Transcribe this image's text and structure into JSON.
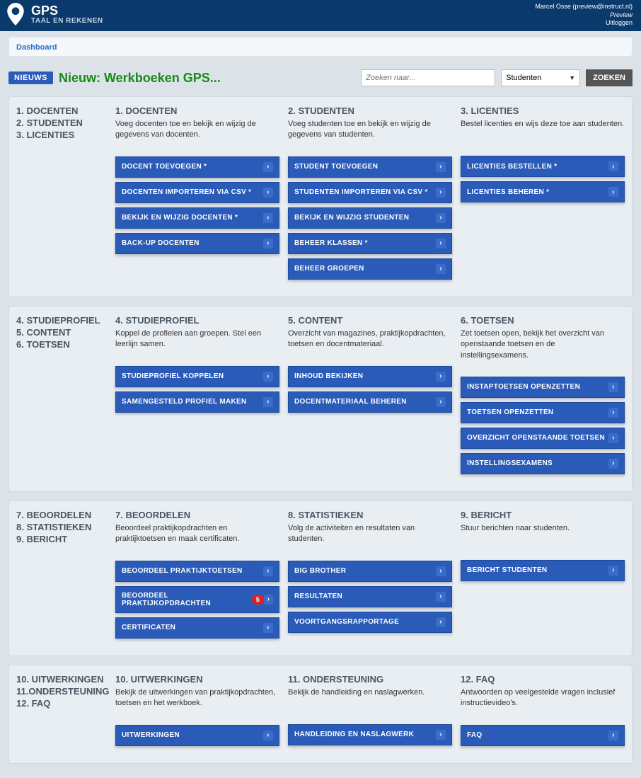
{
  "header": {
    "title": "GPS",
    "subtitle": "TAAL EN REKENEN",
    "user": "Marcel Osse (preview@instruct.nl)",
    "preview": "Preview",
    "logout": "Uitloggen"
  },
  "breadcrumb": {
    "dashboard": "Dashboard"
  },
  "news": {
    "badge": "NIEUWS",
    "text": "Nieuw: Werkboeken GPS..."
  },
  "search": {
    "placeholder": "Zoeken naar...",
    "select": "Studenten",
    "button": "ZOEKEN"
  },
  "sections": [
    {
      "sidebar": [
        "1. DOCENTEN",
        "2. STUDENTEN",
        "3. LICENTIES"
      ],
      "cards": [
        {
          "title": "1. DOCENTEN",
          "desc": "Voeg docenten toe en bekijk en wijzig de gegevens van docenten.",
          "links": [
            {
              "label": "DOCENT TOEVOEGEN *"
            },
            {
              "label": "DOCENTEN IMPORTEREN VIA CSV *"
            },
            {
              "label": "BEKIJK EN WIJZIG DOCENTEN *"
            },
            {
              "label": "BACK-UP DOCENTEN"
            }
          ]
        },
        {
          "title": "2. STUDENTEN",
          "desc": "Voeg studenten toe en bekijk en wijzig de gegevens van studenten.",
          "links": [
            {
              "label": "STUDENT TOEVOEGEN"
            },
            {
              "label": "STUDENTEN IMPORTEREN VIA CSV *"
            },
            {
              "label": "BEKIJK EN WIJZIG STUDENTEN"
            },
            {
              "label": "BEHEER KLASSEN *"
            },
            {
              "label": "BEHEER GROEPEN"
            }
          ]
        },
        {
          "title": "3. LICENTIES",
          "desc": "Bestel licenties en wijs deze toe aan studenten.",
          "links": [
            {
              "label": "LICENTIES BESTELLEN *"
            },
            {
              "label": "LICENTIES BEHEREN *"
            }
          ]
        }
      ]
    },
    {
      "sidebar": [
        "4. STUDIEPROFIEL",
        "5. CONTENT",
        "6. TOETSEN"
      ],
      "cards": [
        {
          "title": "4. STUDIEPROFIEL",
          "desc": "Koppel de profielen aan groepen. Stel een leerlijn samen.",
          "links": [
            {
              "label": "STUDIEPROFIEL KOPPELEN"
            },
            {
              "label": "SAMENGESTELD PROFIEL MAKEN"
            }
          ]
        },
        {
          "title": "5. CONTENT",
          "desc": "Overzicht van magazines, praktijkopdrachten, toetsen en docentmateriaal.",
          "links": [
            {
              "label": "INHOUD BEKIJKEN"
            },
            {
              "label": "DOCENTMATERIAAL BEHEREN"
            }
          ]
        },
        {
          "title": "6. TOETSEN",
          "desc": "Zet toetsen open, bekijk het overzicht van openstaande toetsen en de instellingsexamens.",
          "links": [
            {
              "label": "INSTAPTOETSEN OPENZETTEN"
            },
            {
              "label": "TOETSEN OPENZETTEN"
            },
            {
              "label": "OVERZICHT OPENSTAANDE TOETSEN"
            },
            {
              "label": "INSTELLINGSEXAMENS"
            }
          ]
        }
      ]
    },
    {
      "sidebar": [
        "7. BEOORDELEN",
        "8. STATISTIEKEN",
        "9. BERICHT"
      ],
      "cards": [
        {
          "title": "7. BEOORDELEN",
          "desc": "Beoordeel praktijkopdrachten en praktijktoetsen en maak certificaten.",
          "links": [
            {
              "label": "BEOORDEEL PRAKTIJKTOETSEN"
            },
            {
              "label": "BEOORDEEL PRAKTIJKOPDRACHTEN",
              "badge": "5"
            },
            {
              "label": "CERTIFICATEN"
            }
          ]
        },
        {
          "title": "8. STATISTIEKEN",
          "desc": "Volg de activiteiten en resultaten van studenten.",
          "links": [
            {
              "label": "BIG BROTHER"
            },
            {
              "label": "RESULTATEN"
            },
            {
              "label": "VOORTGANGSRAPPORTAGE"
            }
          ]
        },
        {
          "title": "9. BERICHT",
          "desc": "Stuur berichten naar studenten.",
          "links": [
            {
              "label": "BERICHT STUDENTEN"
            }
          ]
        }
      ]
    },
    {
      "sidebar": [
        "10. UITWERKINGEN",
        "11.ONDERSTEUNING",
        "12. FAQ"
      ],
      "cards": [
        {
          "title": "10. UITWERKINGEN",
          "desc": "Bekijk de uitwerkingen van praktijkopdrachten, toetsen en het werkboek.",
          "links": [
            {
              "label": "UITWERKINGEN"
            }
          ]
        },
        {
          "title": "11. ONDERSTEUNING",
          "desc": "Bekijk de handleiding en naslagwerken.",
          "links": [
            {
              "label": "HANDLEIDING EN NASLAGWERK"
            }
          ]
        },
        {
          "title": "12. FAQ",
          "desc": "Antwoorden op veelgestelde vragen inclusief instructievideo's.",
          "links": [
            {
              "label": "FAQ"
            }
          ]
        }
      ]
    }
  ]
}
